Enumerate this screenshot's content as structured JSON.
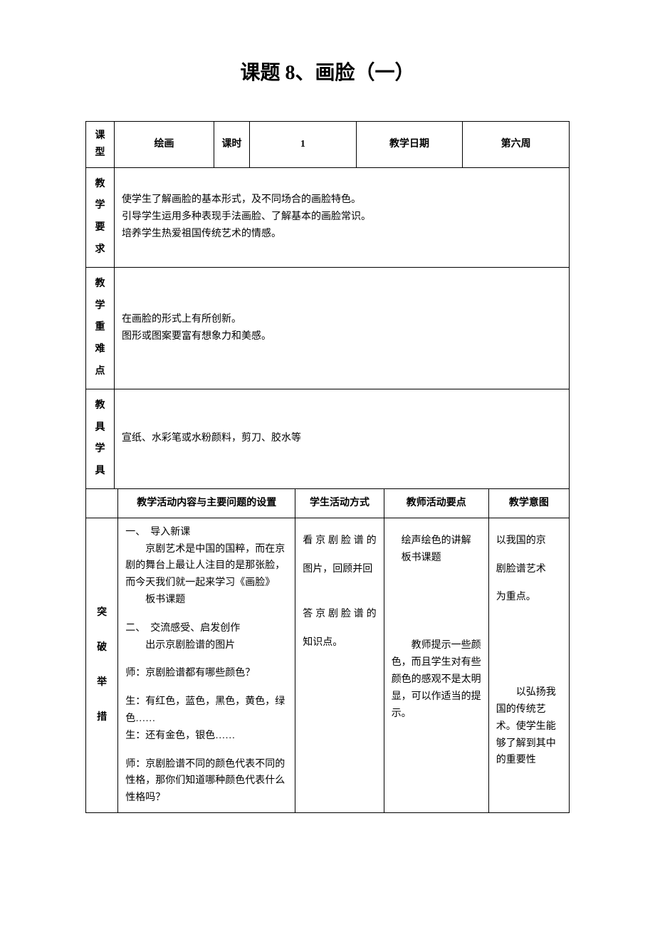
{
  "title": "课题 8、画脸（一）",
  "header": {
    "row1": {
      "type_label": "课型",
      "type_value": "绘画",
      "period_label": "课时",
      "period_value": "1",
      "date_label": "教学日期",
      "date_value": "第六周"
    },
    "objectives_label": "教学要求",
    "objectives_text": "使学生了解画脸的基本形式，及不同场合的画脸特色。\n引导学生运用多种表现手法画脸、了解基本的画脸常识。\n培养学生热爱祖国传统艺术的情感。",
    "keypoints_label": "教学重难点",
    "keypoints_text": "在画脸的形式上有所创新。\n图形或图案要富有想象力和美感。",
    "tools_label": "教具学具",
    "tools_text": "宣纸、水彩笔或水粉颜料，剪刀、胶水等"
  },
  "table_headers": {
    "activity": "教学活动内容与主要问题的设置",
    "student": "学生活动方式",
    "teacher": "教师活动要点",
    "intent": "教学意图"
  },
  "side_label": "突破举措",
  "content": {
    "activity": {
      "sec1_title": "一、　导入新课",
      "sec1_body": "　　京剧艺术是中国的国粹，而在京剧的舞台上最让人注目的是那张脸，而今天我们就一起来学习《画脸》",
      "sec1_note": "　　板书课题",
      "sec2_title": "二、　交流感受、启发创作",
      "sec2_body": "　　出示京剧脸谱的图片",
      "q1": "师：京剧脸谱都有哪些颜色？",
      "a1": "生：有红色，蓝色，黑色，黄色，绿色……",
      "a2": "生：还有金色，银色……",
      "q2": "师：京剧脸谱不同的颜色代表不同的性格，那你们知道哪种颜色代表什么性格吗？"
    },
    "student": {
      "s1": "看京剧脸谱的",
      "s2": "图片，回顾并回",
      "s3": "答京剧脸谱的",
      "s4": "知识点。"
    },
    "teacher": {
      "t1": "　绘声绘色的讲解\n　板书课题",
      "t2": "　　教师提示一些颜色，而且学生对有些颜色的感观不是太明显，可以作适当的提示。"
    },
    "intent": {
      "i1": "以我国的京",
      "i2": "剧脸谱艺术",
      "i3": "为重点。",
      "i4": "　　以弘扬我国的传统艺术。使学生能够了解到其中的重要性"
    }
  }
}
